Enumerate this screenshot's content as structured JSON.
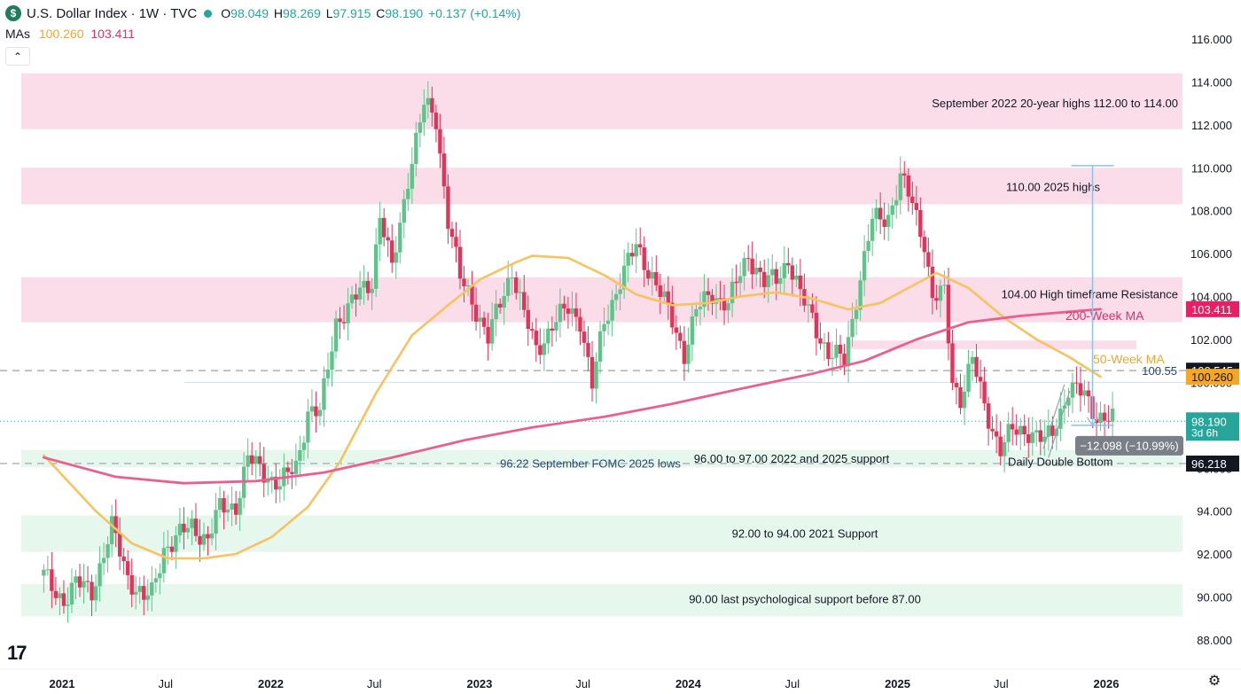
{
  "header": {
    "symbol_icon": "dollar-sign-icon",
    "symbol_badge": "$",
    "title": "U.S. Dollar Index · 1W · TVC",
    "status_dot_color": "#26a69a",
    "ohlc": {
      "o_label": "O",
      "o_value": "98.049",
      "h_label": "H",
      "h_value": "98.269",
      "l_label": "L",
      "l_value": "97.915",
      "c_label": "C",
      "c_value": "98.190",
      "change": "+0.137 (+0.14%)"
    },
    "mas_label": "MAs",
    "ma50_value": "100.260",
    "ma200_value": "103.411",
    "collapse_icon": "chevron-up-icon",
    "collapse_glyph": "⌃",
    "logo_text": "17",
    "settings_icon": "gear-icon",
    "settings_glyph": "⚙"
  },
  "chart_data": {
    "type": "candlestick",
    "timeframe": "1W",
    "ylim": [
      87,
      116.8
    ],
    "y_ticks": [
      "116.000",
      "114.000",
      "112.000",
      "110.000",
      "108.000",
      "106.000",
      "104.000",
      "102.000",
      "100.000",
      "98.000",
      "96.000",
      "94.000",
      "92.000",
      "90.000",
      "88.000"
    ],
    "x_range": [
      "2020-11-30",
      "2026-01-12"
    ],
    "x_ticks": [
      {
        "label": "2021",
        "date": "2021-01-01",
        "bold": true
      },
      {
        "label": "Jul",
        "date": "2021-07-01",
        "bold": false
      },
      {
        "label": "2022",
        "date": "2022-01-01",
        "bold": true
      },
      {
        "label": "Jul",
        "date": "2022-07-01",
        "bold": false
      },
      {
        "label": "2023",
        "date": "2023-01-01",
        "bold": true
      },
      {
        "label": "Jul",
        "date": "2023-07-01",
        "bold": false
      },
      {
        "label": "2024",
        "date": "2024-01-01",
        "bold": true
      },
      {
        "label": "Jul",
        "date": "2024-07-01",
        "bold": false
      },
      {
        "label": "2025",
        "date": "2025-01-01",
        "bold": true
      },
      {
        "label": "Jul",
        "date": "2025-07-01",
        "bold": false
      },
      {
        "label": "2026",
        "date": "2026-01-01",
        "bold": true
      }
    ],
    "price_path": [
      [
        "2020-11-30",
        91.0
      ],
      [
        "2020-12-14",
        90.4
      ],
      [
        "2021-01-04",
        89.9
      ],
      [
        "2021-01-25",
        90.6
      ],
      [
        "2021-02-22",
        90.3
      ],
      [
        "2021-03-29",
        93.2
      ],
      [
        "2021-04-26",
        91.0
      ],
      [
        "2021-05-24",
        89.9
      ],
      [
        "2021-06-07",
        90.1
      ],
      [
        "2021-06-28",
        92.3
      ],
      [
        "2021-08-16",
        93.3
      ],
      [
        "2021-09-13",
        92.7
      ],
      [
        "2021-10-04",
        94.1
      ],
      [
        "2021-11-01",
        94.3
      ],
      [
        "2021-11-22",
        96.4
      ],
      [
        "2021-12-27",
        95.7
      ],
      [
        "2022-01-17",
        95.2
      ],
      [
        "2022-02-14",
        96.1
      ],
      [
        "2022-03-07",
        98.7
      ],
      [
        "2022-03-28",
        98.5
      ],
      [
        "2022-04-25",
        102.9
      ],
      [
        "2022-05-16",
        103.4
      ],
      [
        "2022-06-06",
        104.2
      ],
      [
        "2022-06-27",
        104.8
      ],
      [
        "2022-07-11",
        107.8
      ],
      [
        "2022-08-01",
        105.2
      ],
      [
        "2022-08-29",
        109.6
      ],
      [
        "2022-09-26",
        112.9
      ],
      [
        "2022-10-17",
        112.3
      ],
      [
        "2022-11-07",
        107.6
      ],
      [
        "2022-11-28",
        104.8
      ],
      [
        "2022-12-19",
        103.9
      ],
      [
        "2023-01-16",
        102.0
      ],
      [
        "2023-02-06",
        103.7
      ],
      [
        "2023-02-27",
        105.3
      ],
      [
        "2023-03-20",
        103.1
      ],
      [
        "2023-04-10",
        101.5
      ],
      [
        "2023-05-08",
        102.7
      ],
      [
        "2023-06-05",
        103.4
      ],
      [
        "2023-06-26",
        103.0
      ],
      [
        "2023-07-17",
        99.8
      ],
      [
        "2023-08-07",
        102.8
      ],
      [
        "2023-09-04",
        104.8
      ],
      [
        "2023-10-02",
        106.3
      ],
      [
        "2023-10-30",
        105.0
      ],
      [
        "2023-11-27",
        103.3
      ],
      [
        "2023-12-25",
        101.4
      ],
      [
        "2024-01-15",
        103.3
      ],
      [
        "2024-02-12",
        104.2
      ],
      [
        "2024-03-11",
        103.6
      ],
      [
        "2024-04-15",
        106.0
      ],
      [
        "2024-05-13",
        104.6
      ],
      [
        "2024-06-03",
        104.8
      ],
      [
        "2024-06-24",
        105.8
      ],
      [
        "2024-07-15",
        104.0
      ],
      [
        "2024-08-05",
        103.0
      ],
      [
        "2024-09-02",
        101.3
      ],
      [
        "2024-09-30",
        101.0
      ],
      [
        "2024-10-21",
        104.0
      ],
      [
        "2024-11-18",
        107.5
      ],
      [
        "2024-12-16",
        107.8
      ],
      [
        "2025-01-06",
        109.5
      ],
      [
        "2025-01-27",
        108.3
      ],
      [
        "2025-02-17",
        106.6
      ],
      [
        "2025-03-03",
        103.9
      ],
      [
        "2025-03-24",
        104.1
      ],
      [
        "2025-04-07",
        100.1
      ],
      [
        "2025-04-21",
        99.3
      ],
      [
        "2025-05-12",
        101.0
      ],
      [
        "2025-06-02",
        98.9
      ],
      [
        "2025-06-30",
        96.9
      ],
      [
        "2025-07-21",
        97.7
      ],
      [
        "2025-08-18",
        97.8
      ],
      [
        "2025-09-15",
        97.2
      ],
      [
        "2025-09-29",
        97.7
      ],
      [
        "2025-10-27",
        99.7
      ],
      [
        "2025-11-24",
        99.4
      ],
      [
        "2025-12-15",
        98.5
      ],
      [
        "2026-01-12",
        98.19
      ]
    ],
    "ma50_path": [
      [
        "2020-11-30",
        96.6
      ],
      [
        "2021-03-01",
        94.0
      ],
      [
        "2021-05-03",
        92.5
      ],
      [
        "2021-07-05",
        91.8
      ],
      [
        "2021-09-06",
        91.8
      ],
      [
        "2021-11-01",
        92.0
      ],
      [
        "2022-01-03",
        92.8
      ],
      [
        "2022-03-07",
        94.2
      ],
      [
        "2022-05-02",
        96.3
      ],
      [
        "2022-07-04",
        99.5
      ],
      [
        "2022-09-05",
        102.2
      ],
      [
        "2022-11-07",
        103.6
      ],
      [
        "2023-01-02",
        104.8
      ],
      [
        "2023-03-06",
        105.6
      ],
      [
        "2023-04-03",
        105.9
      ],
      [
        "2023-06-05",
        105.8
      ],
      [
        "2023-08-07",
        105.0
      ],
      [
        "2023-10-02",
        104.1
      ],
      [
        "2023-12-04",
        103.6
      ],
      [
        "2024-02-05",
        103.7
      ],
      [
        "2024-04-01",
        104.0
      ],
      [
        "2024-06-03",
        104.2
      ],
      [
        "2024-08-05",
        103.9
      ],
      [
        "2024-10-07",
        103.4
      ],
      [
        "2024-12-02",
        103.7
      ],
      [
        "2025-02-03",
        104.6
      ],
      [
        "2025-03-10",
        105.1
      ],
      [
        "2025-05-05",
        104.4
      ],
      [
        "2025-07-07",
        103.0
      ],
      [
        "2025-09-01",
        102.0
      ],
      [
        "2025-10-27",
        101.2
      ],
      [
        "2025-12-22",
        100.26
      ]
    ],
    "ma200_path": [
      [
        "2020-11-30",
        96.5
      ],
      [
        "2021-04-05",
        95.6
      ],
      [
        "2021-08-02",
        95.3
      ],
      [
        "2021-12-06",
        95.4
      ],
      [
        "2022-04-04",
        95.8
      ],
      [
        "2022-08-01",
        96.5
      ],
      [
        "2022-12-05",
        97.3
      ],
      [
        "2023-04-03",
        97.9
      ],
      [
        "2023-08-07",
        98.4
      ],
      [
        "2023-12-04",
        99.0
      ],
      [
        "2024-04-01",
        99.7
      ],
      [
        "2024-08-05",
        100.4
      ],
      [
        "2024-11-04",
        101.0
      ],
      [
        "2025-02-03",
        102.0
      ],
      [
        "2025-05-05",
        102.8
      ],
      [
        "2025-08-04",
        103.1
      ],
      [
        "2025-12-22",
        103.411
      ]
    ],
    "zones": [
      {
        "y1": 111.8,
        "y2": 114.4,
        "color": "pink",
        "label": "September 2022 20-year highs 112.00 to 114.00",
        "label_align": "right",
        "label_y": 113.0
      },
      {
        "y1": 108.3,
        "y2": 110.0,
        "color": "pink",
        "label": "110.00 2025 highs",
        "label_align": "center-right",
        "label_y": 109.1
      },
      {
        "y1": 102.8,
        "y2": 104.9,
        "color": "pink",
        "label": "104.00 High timeframe Resistance",
        "label_align": "right",
        "label_y": 104.1
      },
      {
        "y1": 101.55,
        "y2": 101.95,
        "color": "pink",
        "label": "",
        "from": "2024-10-07"
      },
      {
        "y1": 96.05,
        "y2": 96.85,
        "color": "green",
        "label": "96.00 to 97.00 2022 and 2025 support",
        "label_align": "center",
        "label_y": 96.45
      },
      {
        "y1": 92.1,
        "y2": 93.8,
        "color": "green",
        "label": "92.00 to 94.00 2021 Support",
        "label_align": "center",
        "label_y": 92.95
      },
      {
        "y1": 89.1,
        "y2": 90.6,
        "color": "green",
        "label": "90.00 last psychological support before 87.00",
        "label_align": "center",
        "label_y": 89.9
      }
    ],
    "levels": [
      {
        "value": 100.55,
        "label": "100.55",
        "style": "dashed-grey"
      },
      {
        "value": 96.22,
        "label": "96.22 September FOMC 2025 lows",
        "style": "dashed-grey"
      },
      {
        "value": 100.0,
        "label": "",
        "style": "thin-blue"
      },
      {
        "value": 98.19,
        "label": "",
        "style": "dotted-green"
      }
    ],
    "annotations": {
      "ma50_label": "50-Week MA",
      "ma200_label": "200-Week MA",
      "double_bottom": "Daily Double Bottom",
      "measure_label": "−12.098 (−10.99%)",
      "measure_from": 110.1,
      "measure_to": 98.0,
      "measure_date": "2025-12-08"
    },
    "price_tags": [
      {
        "value": "103.411",
        "y": 103.411,
        "color": "#e91e63",
        "text_color": "#ffffff"
      },
      {
        "value": "100.545",
        "y": 100.545,
        "color": "#131722",
        "text_color": "#ffffff"
      },
      {
        "value": "100.260",
        "y": 100.26,
        "color": "#f5a623",
        "text_color": "#131722"
      },
      {
        "value": "98.190",
        "sub": "3d 6h",
        "y": 98.19,
        "color": "#26a69a",
        "text_color": "#ffffff"
      },
      {
        "value": "96.218",
        "y": 96.218,
        "color": "#131722",
        "text_color": "#ffffff"
      }
    ],
    "colors": {
      "up": "#26a69a",
      "up_body": "#5ec48a",
      "down": "#e0345a",
      "ma50": "#f7c35f",
      "ma200": "#e8608f",
      "zone_pink": "#fadde8",
      "zone_green": "#e6f7ee",
      "measure": "#8ec1e6"
    }
  }
}
